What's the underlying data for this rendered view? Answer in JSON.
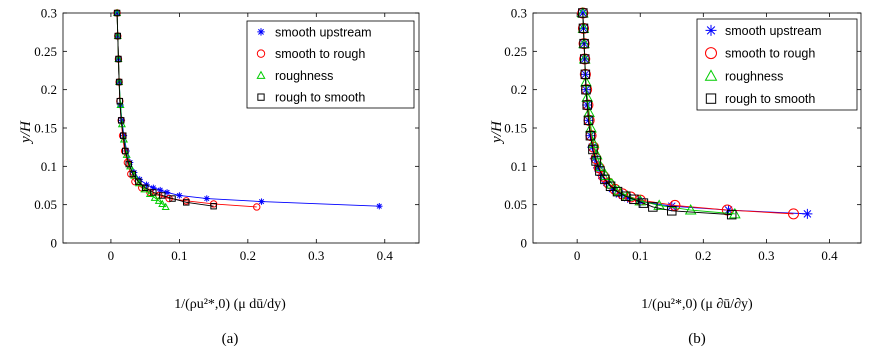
{
  "chart_data": [
    {
      "type": "line",
      "panel_label": "(a)",
      "ylabel": "y/H",
      "xlabel": "1/(ρu²*,0) (μ dū/dy)",
      "xlim": [
        -0.07,
        0.45
      ],
      "ylim": [
        0,
        0.3
      ],
      "xticks": [
        0,
        0.1,
        0.2,
        0.3,
        0.4
      ],
      "xtick_labels": [
        "0",
        "0.1",
        "0.2",
        "0.3",
        "0.4"
      ],
      "yticks": [
        0,
        0.05,
        0.1,
        0.15,
        0.2,
        0.25,
        0.3
      ],
      "ytick_labels": [
        "0",
        "0.05",
        "0.1",
        "0.15",
        "0.2",
        "0.25",
        "0.3"
      ],
      "grid": false,
      "legend_position": "top-right",
      "series": [
        {
          "name": "smooth upstream",
          "marker": "asterisk",
          "color": "#0000ff",
          "x": [
            0.009,
            0.01,
            0.011,
            0.012,
            0.014,
            0.016,
            0.019,
            0.023,
            0.028,
            0.034,
            0.042,
            0.052,
            0.062,
            0.072,
            0.082,
            0.1,
            0.14,
            0.22,
            0.392
          ],
          "y": [
            0.3,
            0.27,
            0.24,
            0.21,
            0.18,
            0.16,
            0.14,
            0.12,
            0.105,
            0.092,
            0.083,
            0.076,
            0.072,
            0.069,
            0.066,
            0.062,
            0.058,
            0.054,
            0.048
          ]
        },
        {
          "name": "smooth to rough",
          "marker": "circle",
          "color": "#ff0000",
          "x": [
            0.009,
            0.01,
            0.011,
            0.012,
            0.013,
            0.015,
            0.017,
            0.02,
            0.024,
            0.029,
            0.035,
            0.045,
            0.057,
            0.07,
            0.085,
            0.11,
            0.15,
            0.213
          ],
          "y": [
            0.3,
            0.27,
            0.24,
            0.21,
            0.185,
            0.16,
            0.14,
            0.12,
            0.105,
            0.09,
            0.08,
            0.072,
            0.066,
            0.062,
            0.058,
            0.055,
            0.051,
            0.047
          ]
        },
        {
          "name": "roughness",
          "marker": "triangle",
          "color": "#00cc00",
          "x": [
            0.009,
            0.01,
            0.011,
            0.012,
            0.014,
            0.016,
            0.019,
            0.023,
            0.028,
            0.034,
            0.041,
            0.049,
            0.057,
            0.064,
            0.07,
            0.075,
            0.08
          ],
          "y": [
            0.3,
            0.27,
            0.24,
            0.21,
            0.18,
            0.155,
            0.135,
            0.115,
            0.1,
            0.088,
            0.078,
            0.07,
            0.064,
            0.059,
            0.055,
            0.051,
            0.047
          ]
        },
        {
          "name": "rough to smooth",
          "marker": "square",
          "color": "#000000",
          "x": [
            0.009,
            0.01,
            0.011,
            0.012,
            0.013,
            0.015,
            0.018,
            0.021,
            0.026,
            0.032,
            0.04,
            0.05,
            0.062,
            0.075,
            0.09,
            0.11,
            0.15
          ],
          "y": [
            0.3,
            0.27,
            0.24,
            0.21,
            0.185,
            0.16,
            0.14,
            0.12,
            0.103,
            0.09,
            0.08,
            0.072,
            0.066,
            0.062,
            0.058,
            0.053,
            0.048
          ]
        }
      ]
    },
    {
      "type": "line",
      "panel_label": "(b)",
      "ylabel": "y/H",
      "xlabel": "1/(ρu²*,0) (μ ∂ū/∂y)",
      "xlim": [
        -0.07,
        0.45
      ],
      "ylim": [
        0,
        0.3
      ],
      "xticks": [
        0,
        0.1,
        0.2,
        0.3,
        0.4
      ],
      "xtick_labels": [
        "0",
        "0.1",
        "0.2",
        "0.3",
        "0.4"
      ],
      "yticks": [
        0,
        0.05,
        0.1,
        0.15,
        0.2,
        0.25,
        0.3
      ],
      "ytick_labels": [
        "0",
        "0.05",
        "0.1",
        "0.15",
        "0.2",
        "0.25",
        "0.3"
      ],
      "grid": false,
      "legend_position": "top-right",
      "series": [
        {
          "name": "smooth upstream",
          "marker": "asterisk",
          "color": "#0000ff",
          "x": [
            0.009,
            0.01,
            0.011,
            0.012,
            0.013,
            0.014,
            0.016,
            0.018,
            0.021,
            0.024,
            0.028,
            0.033,
            0.039,
            0.047,
            0.056,
            0.067,
            0.08,
            0.1,
            0.15,
            0.24,
            0.365
          ],
          "y": [
            0.3,
            0.28,
            0.26,
            0.24,
            0.22,
            0.2,
            0.18,
            0.16,
            0.14,
            0.125,
            0.11,
            0.098,
            0.088,
            0.079,
            0.071,
            0.064,
            0.059,
            0.054,
            0.048,
            0.043,
            0.038
          ]
        },
        {
          "name": "smooth to rough",
          "marker": "circle",
          "color": "#ff0000",
          "x": [
            0.009,
            0.01,
            0.011,
            0.012,
            0.013,
            0.015,
            0.017,
            0.019,
            0.022,
            0.026,
            0.03,
            0.035,
            0.042,
            0.05,
            0.06,
            0.072,
            0.085,
            0.1,
            0.155,
            0.238,
            0.343
          ],
          "y": [
            0.3,
            0.28,
            0.26,
            0.24,
            0.22,
            0.2,
            0.18,
            0.16,
            0.14,
            0.125,
            0.11,
            0.098,
            0.087,
            0.078,
            0.07,
            0.064,
            0.06,
            0.056,
            0.049,
            0.043,
            0.038
          ]
        },
        {
          "name": "roughness",
          "marker": "triangle",
          "color": "#00cc00",
          "x": [
            0.009,
            0.01,
            0.011,
            0.012,
            0.014,
            0.016,
            0.019,
            0.022,
            0.026,
            0.031,
            0.037,
            0.045,
            0.055,
            0.066,
            0.08,
            0.1,
            0.13,
            0.18,
            0.25
          ],
          "y": [
            0.3,
            0.28,
            0.26,
            0.24,
            0.21,
            0.19,
            0.17,
            0.15,
            0.13,
            0.115,
            0.1,
            0.088,
            0.077,
            0.068,
            0.061,
            0.055,
            0.049,
            0.043,
            0.038
          ]
        },
        {
          "name": "rough to smooth",
          "marker": "square",
          "color": "#000000",
          "x": [
            0.009,
            0.01,
            0.011,
            0.012,
            0.013,
            0.014,
            0.016,
            0.018,
            0.021,
            0.025,
            0.03,
            0.036,
            0.044,
            0.053,
            0.064,
            0.077,
            0.09,
            0.105,
            0.12,
            0.15,
            0.245
          ],
          "y": [
            0.3,
            0.28,
            0.26,
            0.24,
            0.22,
            0.2,
            0.18,
            0.16,
            0.14,
            0.122,
            0.107,
            0.094,
            0.083,
            0.074,
            0.067,
            0.061,
            0.057,
            0.052,
            0.047,
            0.042,
            0.037
          ]
        }
      ]
    }
  ]
}
